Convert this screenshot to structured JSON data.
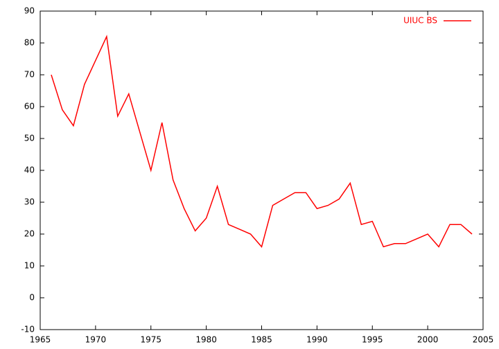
{
  "chart_data": {
    "type": "line",
    "x": [
      1966,
      1967,
      1968,
      1969,
      1970,
      1971,
      1972,
      1973,
      1974,
      1975,
      1976,
      1977,
      1978,
      1979,
      1980,
      1981,
      1982,
      1983,
      1984,
      1985,
      1986,
      1987,
      1988,
      1989,
      1990,
      1991,
      1992,
      1993,
      1994,
      1995,
      1996,
      1997,
      1998,
      1999,
      2000,
      2001,
      2002,
      2003,
      2004
    ],
    "series": [
      {
        "name": "UIUC BS",
        "color": "#ff0000",
        "values": [
          70,
          59,
          54,
          67,
          74.5,
          82,
          57,
          64,
          52,
          40,
          55,
          37,
          28,
          21,
          25,
          35,
          23,
          21.5,
          20,
          16,
          29,
          31,
          33,
          33,
          28,
          29,
          31,
          36,
          23,
          24,
          16,
          17,
          17,
          18.5,
          20,
          16,
          23,
          23,
          20
        ]
      }
    ],
    "xlim": [
      1965,
      2005
    ],
    "xticks": [
      1965,
      1970,
      1975,
      1980,
      1985,
      1990,
      1995,
      2000,
      2005
    ],
    "ylim": [
      -10,
      90
    ],
    "yticks": [
      -10,
      0,
      10,
      20,
      30,
      40,
      50,
      60,
      70,
      80,
      90
    ],
    "grid": false,
    "legend": "top-right"
  }
}
